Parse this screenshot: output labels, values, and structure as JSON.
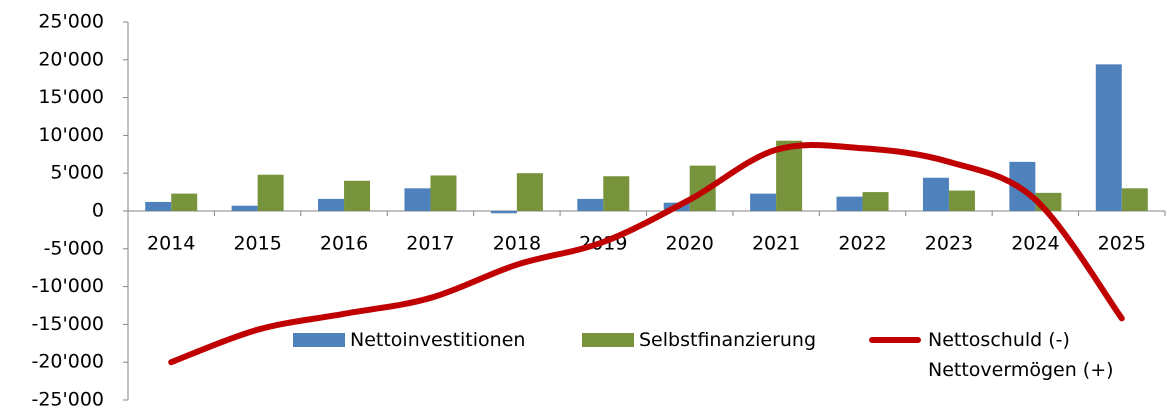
{
  "chart_data": {
    "type": "bar",
    "categories": [
      "2014",
      "2015",
      "2016",
      "2017",
      "2018",
      "2019",
      "2020",
      "2021",
      "2022",
      "2023",
      "2024",
      "2025"
    ],
    "series": [
      {
        "name": "Nettoinvestitionen",
        "type": "bar",
        "color": "#4f81bd",
        "values": [
          1200,
          700,
          1600,
          3000,
          -300,
          1600,
          1100,
          2300,
          1900,
          4400,
          6500,
          19400
        ]
      },
      {
        "name": "Selbstfinanzierung",
        "type": "bar",
        "color": "#77933c",
        "values": [
          2300,
          4800,
          4000,
          4700,
          5000,
          4600,
          6000,
          9300,
          2500,
          2700,
          2400,
          3000
        ]
      },
      {
        "name": "Nettoschuld (-) Nettovermögen (+)",
        "type": "line",
        "color": "#c00000",
        "values": [
          -20000,
          -15700,
          -13600,
          -11500,
          -7100,
          -4100,
          1500,
          8100,
          8300,
          6500,
          1500,
          -14200
        ]
      }
    ],
    "ylim": [
      -25000,
      25000
    ],
    "yticks": [
      {
        "value": -25000,
        "label": "-25'000"
      },
      {
        "value": -20000,
        "label": "-20'000"
      },
      {
        "value": -15000,
        "label": "-15'000"
      },
      {
        "value": -10000,
        "label": "-10'000"
      },
      {
        "value": -5000,
        "label": "-5'000"
      },
      0,
      {
        "value": 5000,
        "label": "5'000"
      },
      {
        "value": 10000,
        "label": "10'000"
      },
      {
        "value": 15000,
        "label": "15'000"
      },
      {
        "value": 20000,
        "label": "20'000"
      },
      {
        "value": 25000,
        "label": "25'000"
      }
    ],
    "grid": false,
    "legend": "bottom"
  }
}
